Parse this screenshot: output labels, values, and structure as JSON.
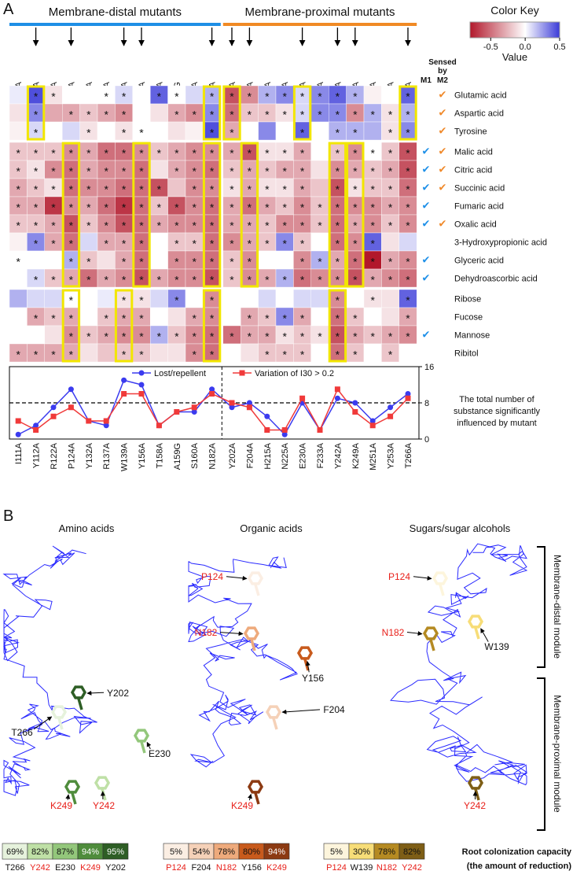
{
  "panel_a": {
    "label": "A",
    "groups": [
      {
        "name": "Membrane-distal mutants",
        "color": "#1e8fe6"
      },
      {
        "name": "Membrane-proximal mutants",
        "color": "#f08a24"
      }
    ],
    "sensed_by": [
      "Sensed",
      "by"
    ],
    "sensed_cols": [
      "M1",
      "M2"
    ],
    "check": "✔",
    "m1_color": "#1e90e8",
    "m2_color": "#f0892a",
    "annotation": [
      "The total number of",
      "substance significantly",
      "influenced by mutant"
    ]
  },
  "chart_data": [
    {
      "type": "heatmap",
      "columns": [
        "I111A",
        "Y112A",
        "R122A",
        "P124A",
        "Y132A",
        "R137A",
        "W139A",
        "Y156A",
        "T158A",
        "A159G",
        "S160A",
        "N182A",
        "Y202A",
        "F204A",
        "H215A",
        "N225A",
        "E230A",
        "F233A",
        "Y242A",
        "K249A",
        "M251A",
        "Y253A",
        "T266A"
      ],
      "rows": [
        "Glutamic acid",
        "Aspartic acid",
        "Tyrosine",
        "Malic acid",
        "Citric acid",
        "Succinic acid",
        "Fumaric acid",
        "Oxalic acid",
        "3-Hydroxypropionic acid",
        "Glyceric acid",
        "Dehydroascorbic acid",
        "Ribose",
        "Fucose",
        "Mannose",
        "Ribitol"
      ],
      "group_sizes": [
        3,
        8,
        4
      ],
      "split_after_column": 11,
      "values": [
        [
          0.05,
          0.45,
          -0.1,
          0,
          0,
          0,
          0.1,
          0,
          0.4,
          0,
          0.1,
          0.2,
          -0.6,
          -0.4,
          0.2,
          0.3,
          0.1,
          0.3,
          0.4,
          0.2,
          -0.05,
          0,
          0.4
        ],
        [
          -0.1,
          0.3,
          -0.3,
          -0.3,
          -0.2,
          -0.3,
          -0.4,
          0,
          -0.1,
          -0.3,
          -0.4,
          0.3,
          -0.5,
          -0.2,
          -0.2,
          -0.1,
          0.1,
          0.3,
          0.3,
          -0.4,
          0.2,
          -0.1,
          0.2
        ],
        [
          -0.05,
          0.1,
          0,
          0.1,
          -0.1,
          0,
          -0.1,
          0,
          0,
          -0.1,
          -0.05,
          0.45,
          -0.3,
          0,
          0.3,
          0,
          0.4,
          0,
          0.2,
          0.2,
          0.2,
          -0.1,
          0.3
        ],
        [
          -0.2,
          -0.2,
          -0.2,
          -0.4,
          -0.3,
          -0.5,
          -0.5,
          -0.4,
          -0.2,
          -0.3,
          -0.4,
          -0.4,
          -0.3,
          -0.6,
          -0.1,
          -0.1,
          -0.3,
          0,
          -0.2,
          -0.4,
          0,
          -0.2,
          -0.6
        ],
        [
          -0.2,
          -0.1,
          -0.4,
          -0.5,
          -0.3,
          -0.4,
          -0.4,
          -0.5,
          -0.1,
          -0.3,
          -0.4,
          -0.5,
          -0.2,
          -0.3,
          -0.2,
          -0.3,
          -0.3,
          -0.1,
          -0.4,
          -0.3,
          -0.2,
          -0.3,
          -0.6
        ],
        [
          -0.3,
          -0.2,
          -0.1,
          -0.5,
          -0.4,
          -0.4,
          -0.5,
          -0.5,
          -0.6,
          -0.2,
          -0.4,
          -0.4,
          -0.1,
          -0.3,
          -0.1,
          -0.1,
          -0.3,
          -0.2,
          -0.6,
          -0.1,
          -0.2,
          -0.2,
          -0.5
        ],
        [
          -0.3,
          -0.3,
          -0.7,
          -0.4,
          -0.3,
          -0.5,
          -0.7,
          -0.5,
          -0.2,
          -0.6,
          -0.4,
          -0.5,
          -0.3,
          -0.5,
          -0.3,
          -0.2,
          -0.4,
          -0.2,
          -0.5,
          -0.4,
          -0.4,
          -0.3,
          -0.4
        ],
        [
          -0.2,
          -0.2,
          -0.3,
          -0.6,
          -0.2,
          -0.4,
          -0.6,
          -0.5,
          -0.3,
          -0.4,
          -0.4,
          -0.5,
          -0.3,
          -0.3,
          -0.2,
          -0.4,
          -0.4,
          -0.2,
          -0.5,
          -0.3,
          -0.4,
          -0.2,
          -0.4
        ],
        [
          -0.05,
          0.3,
          -0.3,
          -0.5,
          0.1,
          -0.3,
          -0.3,
          -0.5,
          0,
          -0.2,
          -0.2,
          -0.5,
          -0.4,
          -0.3,
          -0.2,
          0.3,
          -0.2,
          0,
          -0.5,
          -0.4,
          0.4,
          -0.1,
          0.1
        ],
        [
          0,
          0,
          0,
          0.2,
          -0.2,
          -0.1,
          -0.3,
          -0.5,
          0,
          -0.4,
          -0.4,
          -0.5,
          -0.2,
          -0.4,
          0,
          0,
          -0.4,
          0.2,
          -0.3,
          -0.5,
          -0.8,
          -0.3,
          -0.4
        ],
        [
          0,
          0.1,
          -0.2,
          -0.3,
          -0.5,
          -0.3,
          -0.4,
          -0.6,
          -0.3,
          -0.4,
          -0.4,
          -0.6,
          -0.2,
          -0.4,
          -0.3,
          0.2,
          -0.5,
          -0.4,
          -0.4,
          -0.6,
          -0.3,
          -0.4,
          -0.5
        ],
        [
          0.2,
          0.1,
          0.1,
          0,
          0,
          0.05,
          -0.1,
          -0.1,
          0.1,
          0.3,
          0,
          -0.4,
          0,
          0,
          0.1,
          0,
          0.1,
          0.1,
          -0.4,
          0,
          -0.1,
          -0.1,
          0.4
        ],
        [
          0,
          -0.3,
          -0.2,
          -0.3,
          0,
          -0.2,
          -0.3,
          -0.3,
          0,
          -0.1,
          -0.3,
          -0.4,
          0,
          -0.3,
          -0.2,
          0.3,
          -0.3,
          0,
          -0.5,
          -0.2,
          0,
          -0.1,
          -0.3
        ],
        [
          0,
          0,
          -0.1,
          -0.4,
          -0.2,
          -0.3,
          -0.4,
          -0.4,
          0.2,
          -0.2,
          -0.4,
          -0.5,
          -0.5,
          -0.3,
          -0.3,
          -0.1,
          -0.2,
          -0.1,
          -0.6,
          -0.3,
          -0.2,
          -0.3,
          -0.4
        ],
        [
          -0.3,
          -0.3,
          -0.3,
          -0.3,
          -0.1,
          -0.2,
          -0.2,
          -0.2,
          -0.1,
          -0.1,
          -0.4,
          -0.5,
          0,
          -0.1,
          -0.2,
          -0.2,
          -0.2,
          0,
          -0.5,
          -0.2,
          0,
          -0.2,
          0
        ]
      ],
      "significant": [
        [
          0,
          1,
          1,
          0,
          0,
          1,
          1,
          0,
          1,
          1,
          0,
          1,
          1,
          1,
          1,
          1,
          1,
          1,
          1,
          1,
          0,
          0,
          1
        ],
        [
          0,
          1,
          0,
          1,
          1,
          1,
          1,
          0,
          0,
          1,
          1,
          1,
          1,
          1,
          1,
          1,
          1,
          1,
          1,
          1,
          1,
          1,
          1
        ],
        [
          0,
          1,
          0,
          0,
          1,
          0,
          1,
          1,
          0,
          0,
          0,
          1,
          1,
          0,
          0,
          0,
          1,
          0,
          1,
          1,
          0,
          1,
          1
        ],
        [
          1,
          1,
          1,
          1,
          1,
          1,
          1,
          1,
          1,
          1,
          1,
          1,
          1,
          1,
          1,
          1,
          1,
          0,
          1,
          1,
          1,
          1,
          1
        ],
        [
          1,
          1,
          1,
          1,
          1,
          1,
          1,
          1,
          0,
          1,
          1,
          1,
          1,
          1,
          1,
          1,
          1,
          0,
          1,
          1,
          1,
          1,
          1
        ],
        [
          1,
          1,
          1,
          1,
          1,
          1,
          1,
          1,
          1,
          0,
          1,
          1,
          1,
          1,
          1,
          1,
          1,
          0,
          1,
          1,
          1,
          1,
          1
        ],
        [
          1,
          1,
          1,
          1,
          1,
          1,
          1,
          1,
          1,
          1,
          1,
          1,
          1,
          1,
          1,
          1,
          1,
          1,
          1,
          1,
          1,
          1,
          1
        ],
        [
          1,
          1,
          1,
          1,
          1,
          1,
          1,
          1,
          1,
          1,
          1,
          1,
          1,
          1,
          1,
          1,
          1,
          1,
          1,
          1,
          1,
          1,
          1
        ],
        [
          0,
          1,
          1,
          1,
          0,
          1,
          1,
          1,
          0,
          1,
          1,
          1,
          1,
          1,
          1,
          1,
          1,
          0,
          1,
          1,
          1,
          0,
          0
        ],
        [
          1,
          0,
          0,
          1,
          1,
          0,
          1,
          1,
          0,
          1,
          1,
          1,
          1,
          1,
          0,
          0,
          1,
          1,
          1,
          1,
          1,
          1,
          1
        ],
        [
          0,
          1,
          1,
          1,
          1,
          1,
          1,
          1,
          1,
          1,
          1,
          1,
          1,
          1,
          1,
          1,
          1,
          1,
          1,
          1,
          1,
          1,
          1
        ],
        [
          0,
          0,
          0,
          1,
          0,
          0,
          1,
          1,
          0,
          1,
          0,
          1,
          0,
          0,
          0,
          0,
          0,
          0,
          1,
          0,
          1,
          0,
          1
        ],
        [
          0,
          1,
          1,
          1,
          0,
          1,
          1,
          1,
          0,
          0,
          1,
          1,
          0,
          1,
          1,
          1,
          1,
          0,
          1,
          1,
          0,
          0,
          1
        ],
        [
          0,
          0,
          0,
          1,
          1,
          1,
          1,
          1,
          1,
          1,
          1,
          1,
          1,
          1,
          1,
          1,
          1,
          1,
          1,
          1,
          1,
          1,
          1
        ],
        [
          1,
          1,
          1,
          1,
          0,
          0,
          1,
          1,
          0,
          0,
          1,
          1,
          0,
          0,
          1,
          1,
          1,
          0,
          1,
          1,
          0,
          1,
          0
        ]
      ],
      "marker": "*",
      "sensed_m1": [
        0,
        0,
        0,
        1,
        1,
        1,
        1,
        1,
        0,
        1,
        1,
        0,
        0,
        1,
        0
      ],
      "sensed_m2": [
        1,
        1,
        1,
        1,
        1,
        1,
        0,
        1,
        0,
        0,
        0,
        0,
        0,
        0,
        0
      ],
      "arrow_columns": [
        1,
        3,
        6,
        7,
        11,
        12,
        13,
        16,
        18,
        19,
        22
      ],
      "highlight": [
        [
          1,
          11,
          12,
          16,
          22
        ],
        [
          3,
          7,
          11,
          13,
          18,
          19
        ],
        [
          3,
          6,
          11,
          18
        ]
      ],
      "highlight_color": "#f2e600",
      "colorkey": {
        "title": "Color Key",
        "label": "Value",
        "lim": [
          -0.8,
          0.5
        ],
        "ticks": [
          -0.5,
          {
            "value": 0,
            "label": "0.0"
          },
          0.5
        ],
        "low_color": "#b2182b",
        "mid_color": "#ffffff",
        "high_color": "#3b3bd8"
      }
    },
    {
      "type": "line",
      "categories": [
        "I111A",
        "Y112A",
        "R122A",
        "P124A",
        "Y132A",
        "R137A",
        "W139A",
        "Y156A",
        "T158A",
        "A159G",
        "S160A",
        "N182A",
        "Y202A",
        "F204A",
        "H215A",
        "N225A",
        "E230A",
        "F233A",
        "Y242A",
        "K249A",
        "M251A",
        "Y253A",
        "T266A"
      ],
      "series": [
        {
          "name": "Lost/repellent",
          "color": "#3b3bef",
          "marker": "circle",
          "values": [
            1,
            3,
            7,
            11,
            4,
            3,
            13,
            12,
            3,
            6,
            6,
            11,
            7,
            8,
            5,
            1,
            8,
            2,
            9,
            8,
            4,
            7,
            10
          ]
        },
        {
          "name": "Variation of I30 > 0.2",
          "color": "#f03a3a",
          "marker": "square",
          "values": [
            4,
            2,
            5,
            7,
            4,
            4,
            10,
            10,
            3,
            6,
            7,
            10,
            8,
            7,
            2,
            2,
            9,
            2,
            11,
            6,
            3,
            5,
            9
          ]
        }
      ],
      "ylim": [
        0,
        16
      ],
      "yticks": [
        0,
        8,
        16
      ],
      "reference_line": 8,
      "axis_side": "right",
      "legend": "top"
    }
  ],
  "panel_b": {
    "label": "B",
    "titles": [
      "Amino acids",
      "Organic acids",
      "Sugars/sugar alcohols"
    ],
    "modules": [
      "Membrane-distal module",
      "Membrane-proximal module"
    ],
    "residues": [
      [
        {
          "name": "Y202",
          "red": false
        },
        {
          "name": "T266",
          "red": false
        },
        {
          "name": "K249",
          "red": true
        },
        {
          "name": "Y242",
          "red": true
        },
        {
          "name": "E230",
          "red": false
        }
      ],
      [
        {
          "name": "P124",
          "red": true
        },
        {
          "name": "N182",
          "red": true
        },
        {
          "name": "Y156",
          "red": false
        },
        {
          "name": "F204",
          "red": false
        },
        {
          "name": "K249",
          "red": true
        }
      ],
      [
        {
          "name": "P124",
          "red": true
        },
        {
          "name": "N182",
          "red": true
        },
        {
          "name": "W139",
          "red": false
        },
        {
          "name": "Y242",
          "red": true
        }
      ]
    ],
    "legends": [
      [
        {
          "value": 69,
          "label": "69%",
          "name": "T266",
          "red": false,
          "color": "#e6f2dc"
        },
        {
          "value": 82,
          "label": "82%",
          "name": "Y242",
          "red": true,
          "color": "#bfe0a6"
        },
        {
          "value": 87,
          "label": "87%",
          "name": "E230",
          "red": false,
          "color": "#93c77b"
        },
        {
          "value": 94,
          "label": "94%",
          "name": "K249",
          "red": true,
          "color": "#4f8c3c"
        },
        {
          "value": 95,
          "label": "95%",
          "name": "Y202",
          "red": false,
          "color": "#2e5e25"
        }
      ],
      [
        {
          "value": 5,
          "label": "5%",
          "name": "P124",
          "red": true,
          "color": "#fbeee3"
        },
        {
          "value": 54,
          "label": "54%",
          "name": "F204",
          "red": false,
          "color": "#f5d1b8"
        },
        {
          "value": 78,
          "label": "78%",
          "name": "N182",
          "red": true,
          "color": "#eeaa7c"
        },
        {
          "value": 80,
          "label": "80%",
          "name": "Y156",
          "red": false,
          "color": "#c85a1c"
        },
        {
          "value": 94,
          "label": "94%",
          "name": "K249",
          "red": true,
          "color": "#8c3a12"
        }
      ],
      [
        {
          "value": 5,
          "label": "5%",
          "name": "P124",
          "red": true,
          "color": "#fdf5dc"
        },
        {
          "value": 30,
          "label": "30%",
          "name": "W139",
          "red": false,
          "color": "#f7dd78"
        },
        {
          "value": 78,
          "label": "78%",
          "name": "N182",
          "red": true,
          "color": "#b58a22"
        },
        {
          "value": 82,
          "label": "82%",
          "name": "Y242",
          "red": true,
          "color": "#7e5e16"
        }
      ]
    ],
    "caption": [
      "Root colonization capacity",
      "(the amount of reduction)"
    ]
  }
}
